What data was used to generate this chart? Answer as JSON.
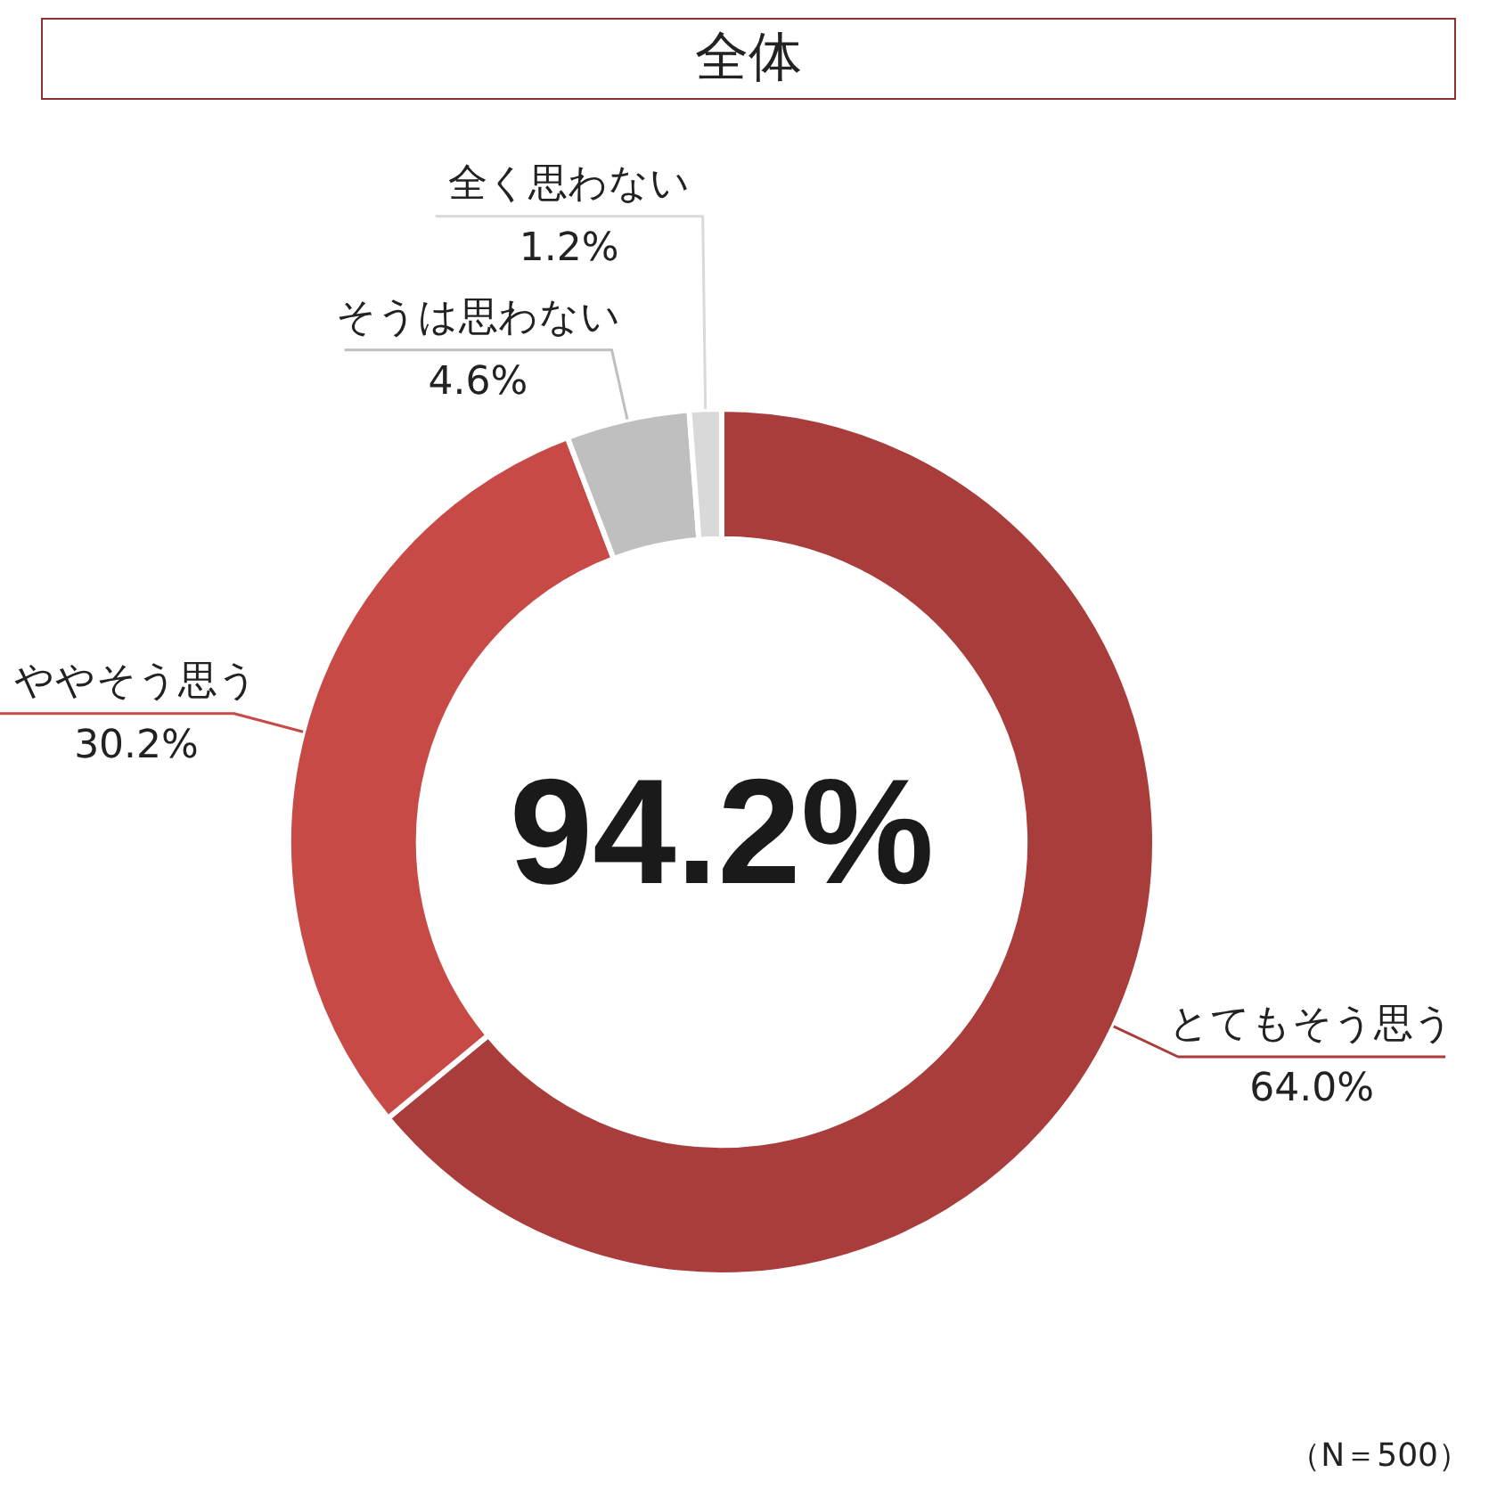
{
  "chart_data": {
    "type": "donut",
    "title": "全体",
    "categories": [
      "とてもそう思う",
      "ややそう思う",
      "そうは思わない",
      "全く思わない"
    ],
    "values": [
      64.0,
      30.2,
      4.6,
      1.2
    ],
    "value_labels": [
      "64.0%",
      "30.2%",
      "4.6%",
      "1.2%"
    ],
    "colors": [
      "#a93d3c",
      "#c84a46",
      "#bfbfbf",
      "#d9d9d9"
    ],
    "annotations": [
      "94.2%",
      "（N＝500）"
    ],
    "legend": false
  }
}
